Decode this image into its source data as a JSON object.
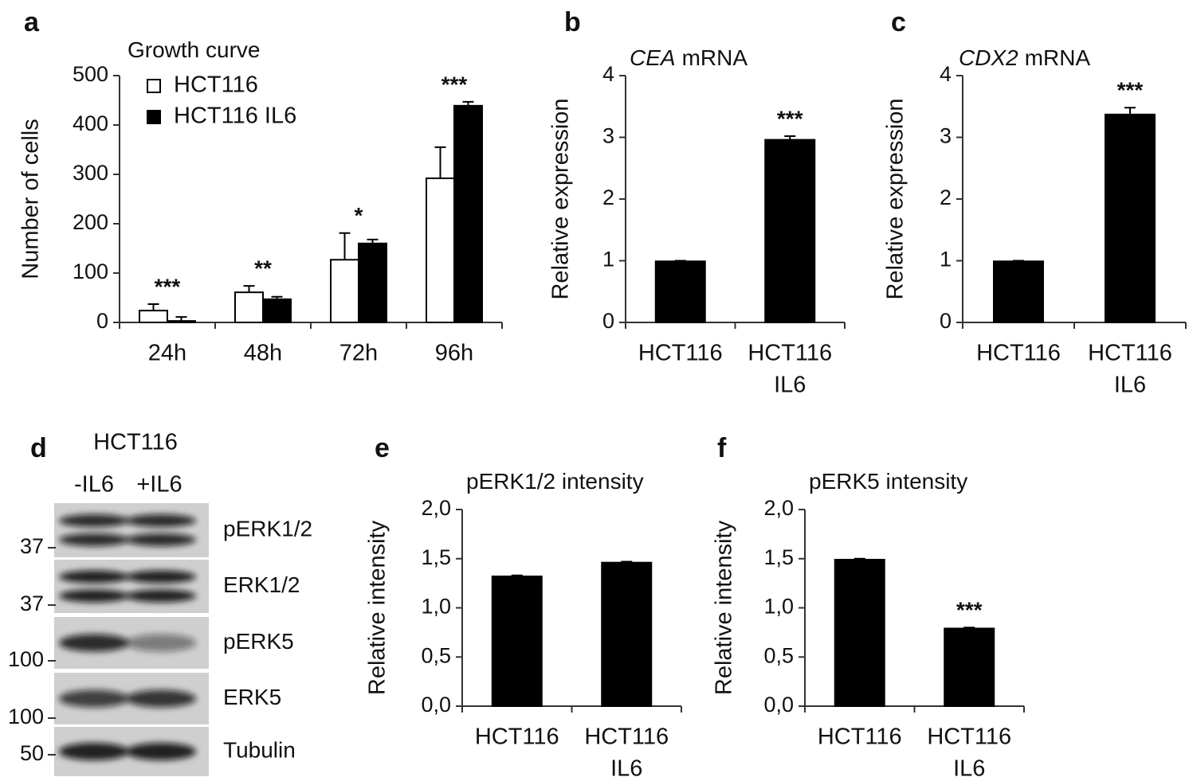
{
  "chart_data": [
    {
      "type": "bar",
      "panel": "a",
      "title": "Growth curve",
      "y_label": "Number of cells",
      "categories": [
        [
          "24h"
        ],
        [
          "48h"
        ],
        [
          "72h"
        ],
        [
          "96h"
        ]
      ],
      "series": [
        {
          "name": "HCT116",
          "color": "#ffffff",
          "values": [
            24,
            61,
            127,
            292
          ],
          "errors": [
            13,
            13,
            54,
            63
          ]
        },
        {
          "name": "HCT116 IL6",
          "color": "#000000",
          "values": [
            3,
            47,
            160,
            439
          ],
          "errors": [
            8,
            5,
            8,
            8
          ]
        }
      ],
      "annotations": [
        "***",
        "**",
        "*",
        "***"
      ],
      "ylim": [
        0,
        500
      ],
      "yticks": [
        0,
        100,
        200,
        300,
        400,
        500
      ]
    },
    {
      "type": "bar",
      "panel": "b",
      "title_italic": "CEA",
      "title": "mRNA",
      "y_label": "Relative expression",
      "categories": [
        [
          "HCT116"
        ],
        [
          "HCT116",
          "IL6"
        ]
      ],
      "color": "#000000",
      "values": [
        0.99,
        2.96
      ],
      "errors": [
        0.01,
        0.06
      ],
      "annotations": [
        null,
        "***"
      ],
      "ylim": [
        0,
        4
      ],
      "yticks": [
        0,
        1,
        2,
        3,
        4
      ]
    },
    {
      "type": "bar",
      "panel": "c",
      "title_italic": "CDX2",
      "title": "mRNA",
      "y_label": "Relative expression",
      "categories": [
        [
          "HCT116"
        ],
        [
          "HCT116",
          "IL6"
        ]
      ],
      "color": "#000000",
      "values": [
        0.99,
        3.37
      ],
      "errors": [
        0.01,
        0.11
      ],
      "annotations": [
        null,
        "***"
      ],
      "ylim": [
        0,
        4
      ],
      "yticks": [
        0,
        1,
        2,
        3,
        4
      ]
    },
    {
      "type": "bar",
      "panel": "e",
      "title": "pERK1/2 intensity",
      "y_label": "Relative intensity",
      "categories": [
        [
          "HCT116"
        ],
        [
          "HCT116",
          "IL6"
        ]
      ],
      "color": "#000000",
      "values": [
        1.32,
        1.46
      ],
      "errors": [
        0.01,
        0.01
      ],
      "ylim": [
        0,
        2
      ],
      "yticks": [
        {
          "value": 0,
          "label": "0,0"
        },
        {
          "value": 0.5,
          "label": "0,5"
        },
        {
          "value": 1,
          "label": "1,0"
        },
        {
          "value": 1.5,
          "label": "1,5"
        },
        {
          "value": 2,
          "label": "2,0"
        }
      ]
    },
    {
      "type": "bar",
      "panel": "f",
      "title": "pERK5 intensity",
      "y_label": "Relative intensity",
      "categories": [
        [
          "HCT116"
        ],
        [
          "HCT116",
          "IL6"
        ]
      ],
      "color": "#000000",
      "values": [
        1.49,
        0.79
      ],
      "errors": [
        0.01,
        0.01
      ],
      "annotations": [
        null,
        "***"
      ],
      "ylim": [
        0,
        2
      ],
      "yticks": [
        {
          "value": 0,
          "label": "0,0"
        },
        {
          "value": 0.5,
          "label": "0,5"
        },
        {
          "value": 1,
          "label": "1,0"
        },
        {
          "value": 1.5,
          "label": "1,5"
        },
        {
          "value": 2,
          "label": "2,0"
        }
      ]
    }
  ],
  "blot": {
    "panel": "d",
    "cell_line": "HCT116",
    "lanes": [
      "-IL6",
      "+IL6"
    ],
    "bands": [
      "pERK1/2",
      "ERK1/2",
      "pERK5",
      "ERK5",
      "Tubulin"
    ],
    "markers": [
      37,
      37,
      100,
      100,
      50
    ]
  }
}
